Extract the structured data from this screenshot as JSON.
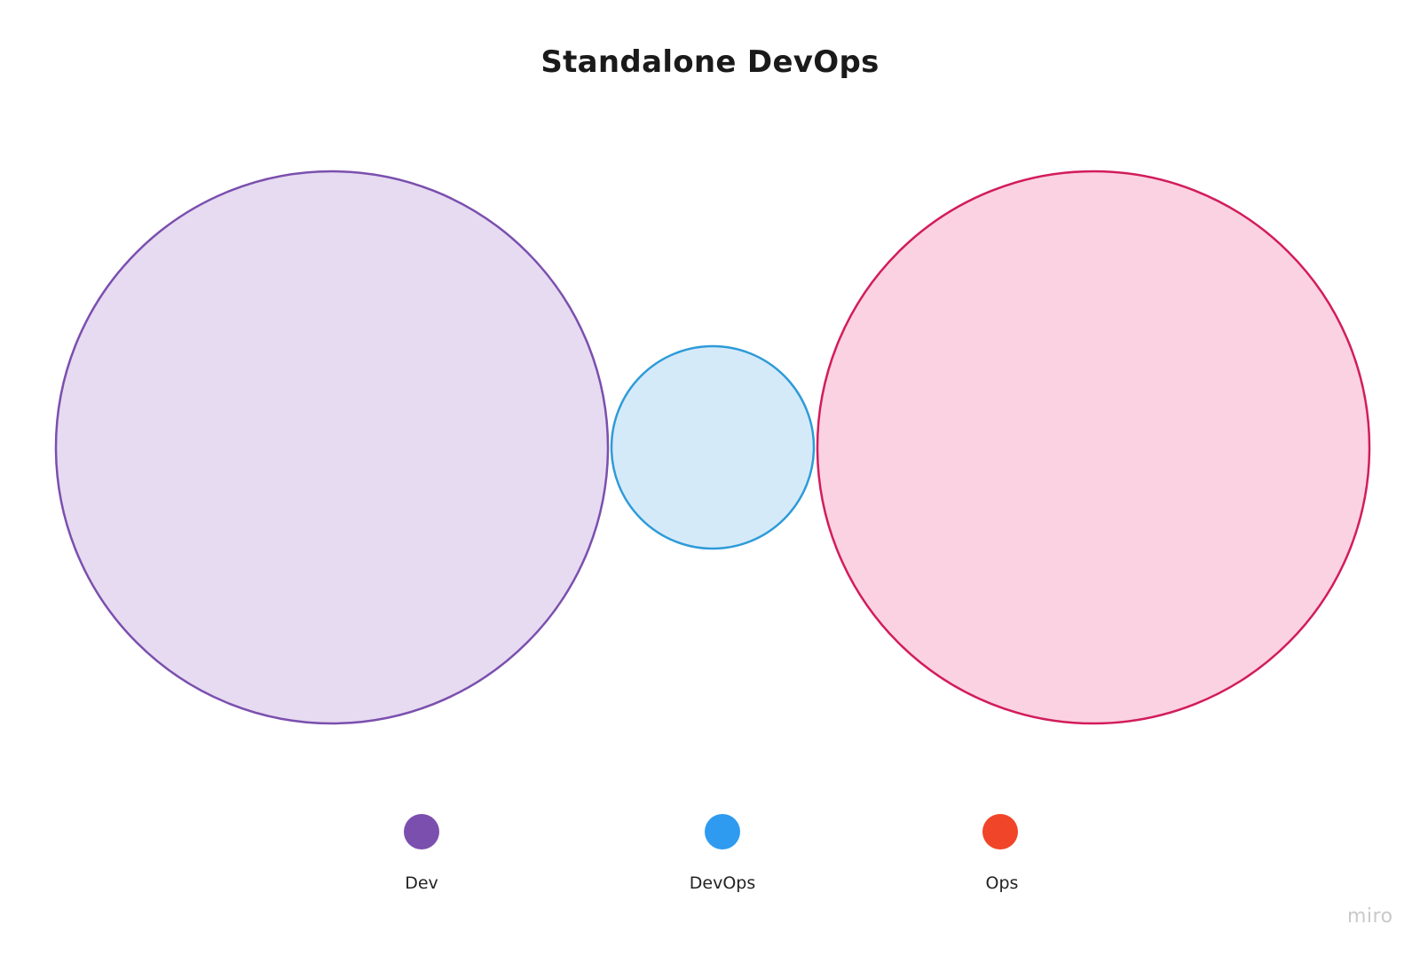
{
  "title": "Standalone DevOps",
  "sets": [
    {
      "label": "Dev",
      "fill": "#e6dbf1",
      "stroke": "#7b4fae",
      "legend_color": "#7b4fae"
    },
    {
      "label": "DevOps",
      "fill": "#d5eaf9",
      "stroke": "#2e9bd8",
      "legend_color": "#2e9bf0"
    },
    {
      "label": "Ops",
      "fill": "#fbd2e1",
      "stroke": "#d21c5b",
      "legend_color": "#f04528"
    }
  ],
  "watermark": "miro"
}
